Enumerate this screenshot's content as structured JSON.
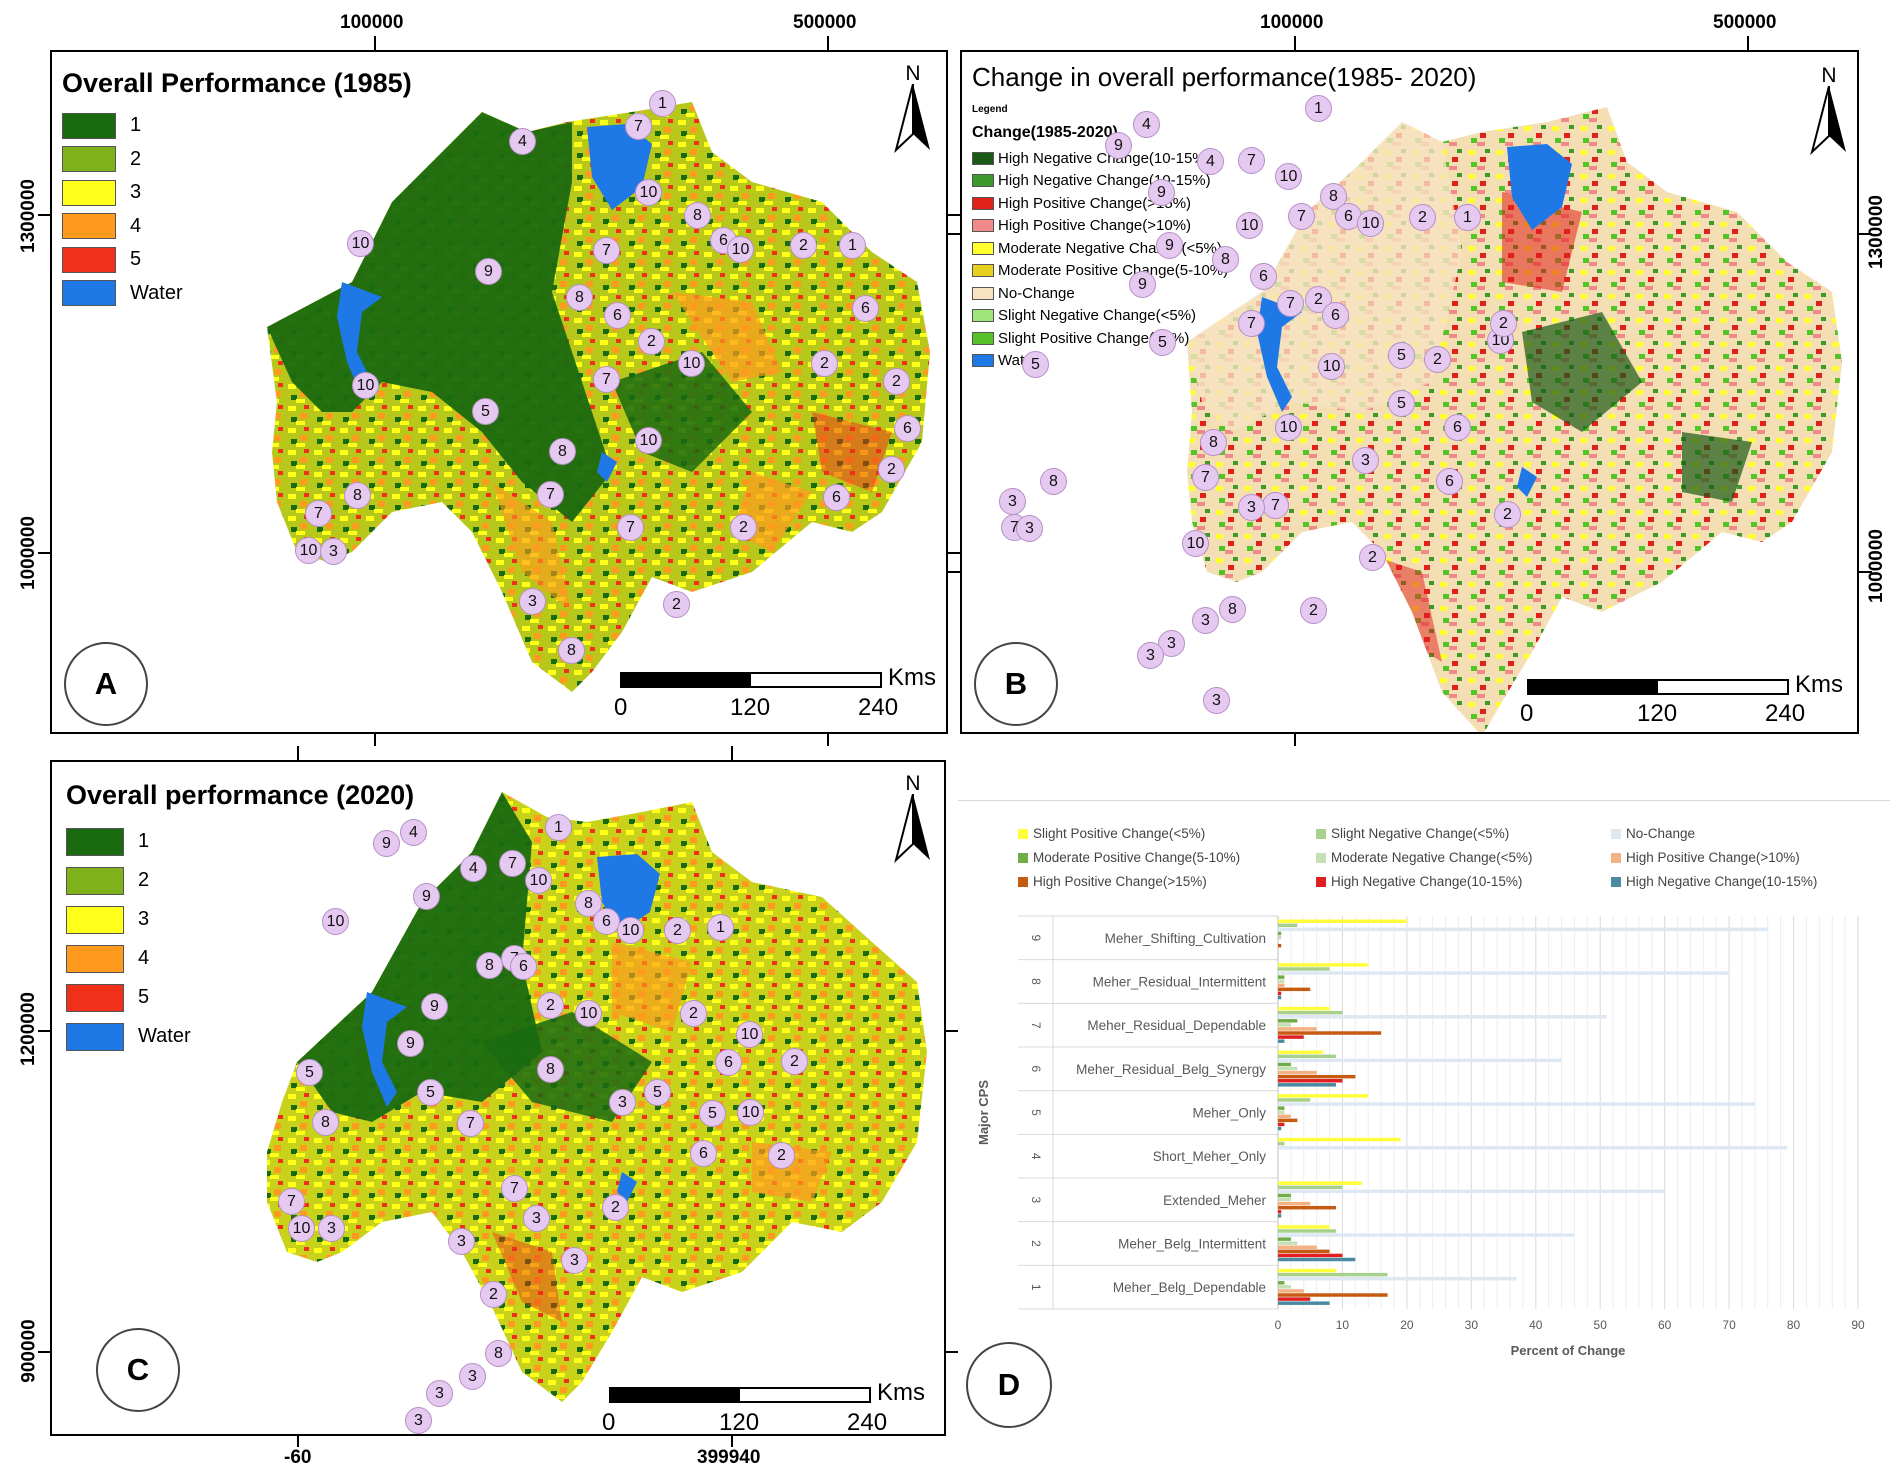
{
  "top_coords": {
    "left_a": "100000",
    "right_a": "500000",
    "left_b": "100000",
    "right_b": "500000"
  },
  "left_coords_a": {
    "upper": "1300000",
    "lower": "1000000"
  },
  "right_coords_b": {
    "upper": "1300000",
    "lower": "1000000"
  },
  "left_coords_c": {
    "upper": "1200000",
    "lower": "900000"
  },
  "bottom_coords_c": {
    "left": "-60",
    "right": "399940"
  },
  "panel_a": {
    "title": "Overall Performance (1985)",
    "letter": "A",
    "north": "N",
    "legend": [
      {
        "label": "1",
        "color": "#1a6a10"
      },
      {
        "label": "2",
        "color": "#7fb21a"
      },
      {
        "label": "3",
        "color": "#ffff1a"
      },
      {
        "label": "4",
        "color": "#ff9a1f"
      },
      {
        "label": "5",
        "color": "#f03018"
      },
      {
        "label": "Water",
        "color": "#1e78e6"
      }
    ],
    "scale": {
      "unit": "Kms",
      "t0": "0",
      "t1": "120",
      "t2": "240"
    },
    "zones": [
      "1",
      "7",
      "4",
      "10",
      "8",
      "6",
      "10",
      "2",
      "1",
      "10",
      "7",
      "9",
      "8",
      "6",
      "2",
      "6",
      "10",
      "7",
      "2",
      "10",
      "5",
      "2",
      "6",
      "8",
      "10",
      "2",
      "7",
      "8",
      "6",
      "7",
      "7",
      "2",
      "10",
      "3",
      "3",
      "2",
      "8"
    ]
  },
  "panel_b": {
    "title": "Change in overall performance(1985- 2020)",
    "legend_heading": "Legend",
    "legend_sub": "Change(1985-2020)",
    "letter": "B",
    "north": "N",
    "legend": [
      {
        "label": "High Negative Change(10-15%)",
        "color": "#1a5a14"
      },
      {
        "label": "High Negative Change(10-15%)",
        "color": "#3c9a2a"
      },
      {
        "label": "High Positive Change(>15%)",
        "color": "#e0201a"
      },
      {
        "label": "High Positive Change(>10%)",
        "color": "#f08a8a"
      },
      {
        "label": "Moderate Negative Change(<5%)",
        "color": "#ffff30"
      },
      {
        "label": "Moderate Positive Change(5-10%)",
        "color": "#e6d21e"
      },
      {
        "label": "No-Change",
        "color": "#f8e2c2"
      },
      {
        "label": "Slight Negative Change(<5%)",
        "color": "#9ee67a"
      },
      {
        "label": "Slight Positive Change(<5%)",
        "color": "#56c22a"
      },
      {
        "label": "Water",
        "color": "#1e78e6"
      }
    ],
    "scale": {
      "unit": "Kms",
      "t0": "0",
      "t1": "120",
      "t2": "240"
    },
    "zones": [
      "1",
      "4",
      "9",
      "4",
      "7",
      "10",
      "9",
      "8",
      "6",
      "10",
      "2",
      "1",
      "10",
      "7",
      "9",
      "8",
      "6",
      "9",
      "7",
      "2",
      "6",
      "10",
      "2",
      "10",
      "5",
      "7",
      "2",
      "5",
      "5",
      "6",
      "10",
      "8",
      "5",
      "3",
      "7",
      "8",
      "6",
      "2",
      "7",
      "3",
      "10",
      "3",
      "7",
      "3",
      "2",
      "2",
      "3",
      "8",
      "3",
      "3",
      "3"
    ]
  },
  "panel_c": {
    "title": "Overall performance (2020)",
    "letter": "C",
    "north": "N",
    "legend": [
      {
        "label": "1",
        "color": "#1a6a10"
      },
      {
        "label": "2",
        "color": "#7fb21a"
      },
      {
        "label": "3",
        "color": "#ffff1a"
      },
      {
        "label": "4",
        "color": "#ff9a1f"
      },
      {
        "label": "5",
        "color": "#f03018"
      },
      {
        "label": "Water",
        "color": "#1e78e6"
      }
    ],
    "scale": {
      "unit": "Kms",
      "t0": "0",
      "t1": "120",
      "t2": "240"
    },
    "zones": [
      "9",
      "4",
      "1",
      "4",
      "7",
      "10",
      "9",
      "8",
      "6",
      "10",
      "2",
      "1",
      "10",
      "9",
      "8",
      "7",
      "6",
      "9",
      "2",
      "10",
      "2",
      "10",
      "5",
      "5",
      "6",
      "2",
      "5",
      "8",
      "10",
      "5",
      "3",
      "7",
      "8",
      "6",
      "2",
      "7",
      "3",
      "7",
      "2",
      "10",
      "3",
      "3",
      "3",
      "2",
      "3",
      "8",
      "3",
      "3"
    ]
  },
  "panel_d": {
    "letter": "D",
    "chart_data": {
      "type": "bar",
      "orientation": "horizontal",
      "title": "",
      "xlabel": "Percent of Change",
      "ylabel": "Major CPS",
      "xlim": [
        0,
        90
      ],
      "xticks": [
        "0",
        "10",
        "20",
        "30",
        "40",
        "50",
        "60",
        "70",
        "80",
        "90"
      ],
      "grid": true,
      "legend_position": "top",
      "categories": [
        "Meher_Shifting_Cultivation",
        "Meher_Residual_Intermittent",
        "Meher_Residual_Dependable",
        "Meher_Residual_Belg_Synergy",
        "Meher_Only",
        "Short_Meher_Only",
        "Extended_Meher",
        "Meher_Belg_Intermittent",
        "Meher_Belg_Dependable"
      ],
      "category_numbers": [
        "9",
        "8",
        "7",
        "6",
        "5",
        "4",
        "3",
        "2",
        "1"
      ],
      "series": [
        {
          "name": "Slight Positive Change(<5%)",
          "color": "#ffff3a",
          "values": [
            20,
            14,
            8,
            7,
            14,
            19,
            13,
            8,
            9
          ]
        },
        {
          "name": "Slight Negative Change(<5%)",
          "color": "#a8d08d",
          "values": [
            3,
            8,
            10,
            9,
            5,
            1,
            10,
            9,
            17
          ]
        },
        {
          "name": "No-Change",
          "color": "#dde8f3",
          "values": [
            76,
            70,
            51,
            44,
            74,
            79,
            60,
            46,
            37
          ]
        },
        {
          "name": "Moderate Positive Change(5-10%)",
          "color": "#70ad47",
          "values": [
            0.5,
            1,
            3,
            2,
            1,
            0,
            2,
            2,
            1
          ]
        },
        {
          "name": "Moderate Negative Change(<5%)",
          "color": "#c5e0b4",
          "values": [
            0.5,
            1,
            2,
            3,
            1,
            0,
            2,
            3,
            2
          ]
        },
        {
          "name": "High Positive Change(>10%)",
          "color": "#f4b183",
          "values": [
            0,
            1,
            6,
            6,
            2,
            0,
            5,
            6,
            4
          ]
        },
        {
          "name": "High Positive Change(>15%)",
          "color": "#c55a11",
          "values": [
            0.5,
            5,
            16,
            12,
            3,
            0,
            9,
            8,
            17
          ]
        },
        {
          "name": "High Negative Change(10-15%)",
          "color": "#e02020",
          "values": [
            0,
            0.5,
            4,
            10,
            1,
            0,
            0.5,
            10,
            5
          ]
        },
        {
          "name": "High Negative Change(10-15%)",
          "color": "#4a8aa0",
          "values": [
            0,
            0.5,
            1,
            9,
            0.5,
            0,
            0.5,
            12,
            8
          ]
        }
      ]
    }
  }
}
